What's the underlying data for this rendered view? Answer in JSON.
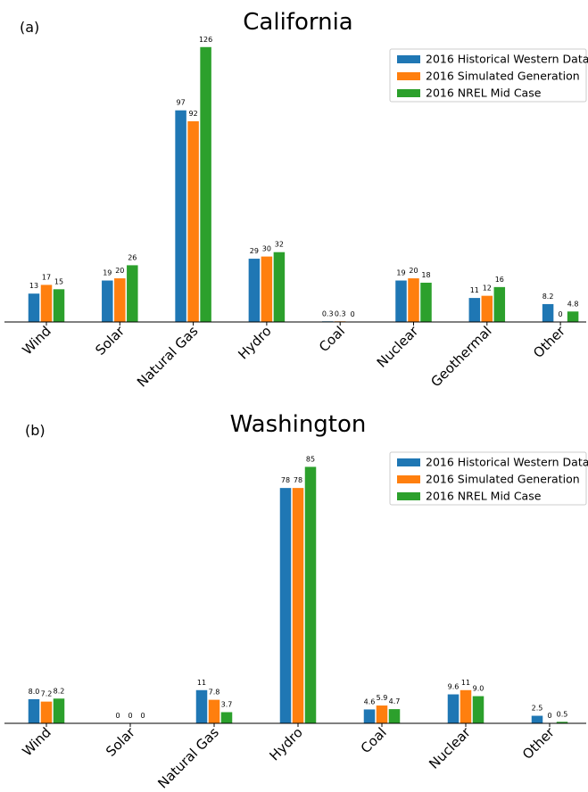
{
  "colors": {
    "historical": "#1f77b4",
    "simulated": "#ff7f0e",
    "nrel": "#2ca02c",
    "axis": "#000000",
    "legend_border": "#cccccc"
  },
  "chart_data": [
    {
      "type": "bar",
      "panel_label": "(a)",
      "title": "California",
      "categories": [
        "Wind",
        "Solar",
        "Natural Gas",
        "Hydro",
        "Coal",
        "Nuclear",
        "Geothermal",
        "Other"
      ],
      "series": [
        {
          "name": "2016 Historical Western Data",
          "values": [
            13,
            19,
            97,
            29,
            0.3,
            19,
            11,
            8.2
          ],
          "labels": [
            "13",
            "19",
            "97",
            "29",
            "0.3",
            "19",
            "11",
            "8.2"
          ]
        },
        {
          "name": "2016 Simulated Generation",
          "values": [
            17,
            20,
            92,
            30,
            0.3,
            20,
            12,
            0
          ],
          "labels": [
            "17",
            "20",
            "92",
            "30",
            "0.3",
            "20",
            "12",
            "0"
          ]
        },
        {
          "name": "2016 NREL Mid Case",
          "values": [
            15,
            26,
            126,
            32,
            0,
            18,
            16,
            4.8
          ],
          "labels": [
            "15",
            "26",
            "126",
            "32",
            "0",
            "18",
            "16",
            "4.8"
          ]
        }
      ],
      "ylim": [
        0,
        130
      ],
      "legend": "top-right",
      "grid": false
    },
    {
      "type": "bar",
      "panel_label": "(b)",
      "title": "Washington",
      "categories": [
        "Wind",
        "Solar",
        "Natural Gas",
        "Hydro",
        "Coal",
        "Nuclear",
        "Other"
      ],
      "series": [
        {
          "name": "2016 Historical Western Data",
          "values": [
            8.0,
            0,
            11,
            78,
            4.6,
            9.6,
            2.5
          ],
          "labels": [
            "8.0",
            "0",
            "11",
            "78",
            "4.6",
            "9.6",
            "2.5"
          ]
        },
        {
          "name": "2016 Simulated Generation",
          "values": [
            7.2,
            0,
            7.8,
            78,
            5.9,
            11,
            0
          ],
          "labels": [
            "7.2",
            "0",
            "7.8",
            "78",
            "5.9",
            "11",
            "0"
          ]
        },
        {
          "name": "2016 NREL Mid Case",
          "values": [
            8.2,
            0,
            3.7,
            85,
            4.7,
            9.0,
            0.5
          ],
          "labels": [
            "8.2",
            "0",
            "3.7",
            "85",
            "4.7",
            "9.0",
            "0.5"
          ]
        }
      ],
      "ylim": [
        0,
        94
      ],
      "legend": "top-right",
      "grid": false
    }
  ]
}
